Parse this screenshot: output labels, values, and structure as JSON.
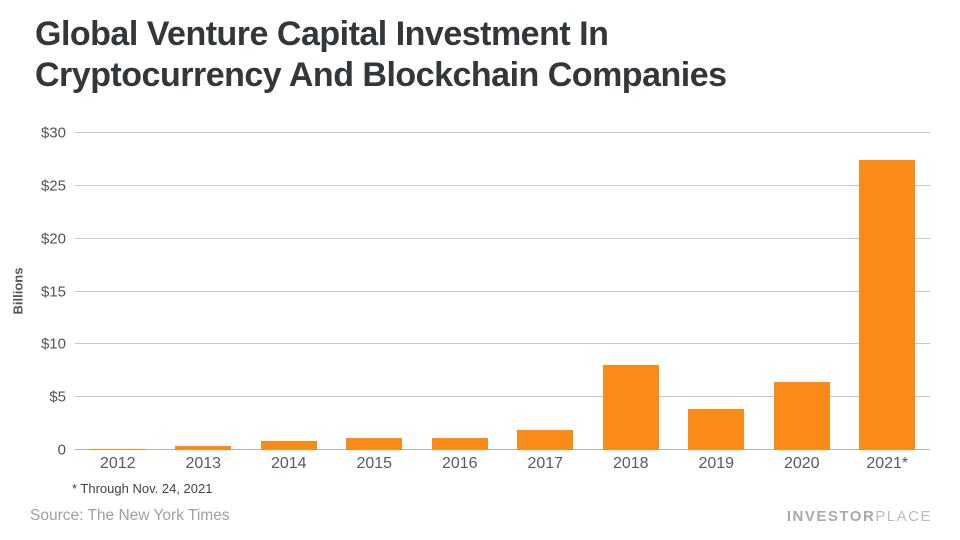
{
  "title_line1": "Global Venture Capital Investment In",
  "title_line2": "Cryptocurrency And Blockchain Companies",
  "footnote": "* Through Nov. 24, 2021",
  "source": "Source: The New York Times",
  "logo": {
    "bold": "INVESTOR",
    "light": "PLACE"
  },
  "colors": {
    "bar": "#fb8a16",
    "title_text": "#32373c",
    "axis_text": "#4d565e",
    "gridline": "#c7cacd",
    "source_text": "#9ba1a8"
  },
  "chart_data": {
    "type": "bar",
    "title": "Global Venture Capital Investment In Cryptocurrency And Blockchain Companies",
    "categories": [
      "2012",
      "2013",
      "2014",
      "2015",
      "2016",
      "2017",
      "2018",
      "2019",
      "2020",
      "2021*"
    ],
    "values": [
      0.1,
      0.4,
      0.9,
      1.1,
      1.1,
      1.9,
      8.0,
      3.9,
      6.4,
      27.4
    ],
    "xlabel": "",
    "ylabel": "Billions",
    "ylim": [
      0,
      30
    ],
    "yticks": [
      {
        "value": 0,
        "label": "0"
      },
      {
        "value": 5,
        "label": "$5"
      },
      {
        "value": 10,
        "label": "$10"
      },
      {
        "value": 15,
        "label": "$15"
      },
      {
        "value": 20,
        "label": "$20"
      },
      {
        "value": 25,
        "label": "$25"
      },
      {
        "value": 30,
        "label": "$30"
      }
    ],
    "grid": true,
    "legend": false
  }
}
